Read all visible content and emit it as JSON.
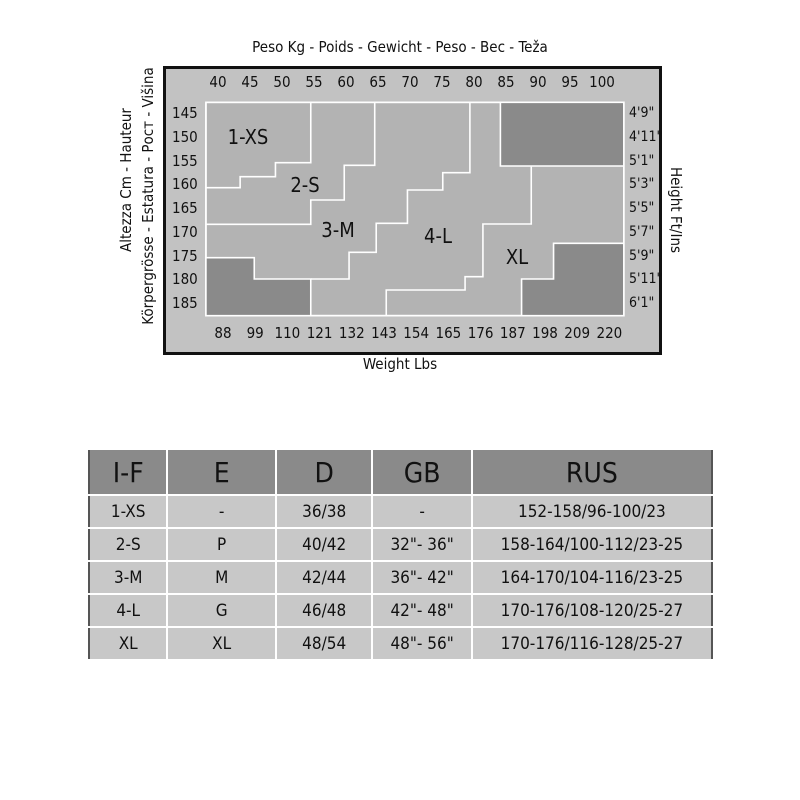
{
  "chart": {
    "title_top": "Peso Kg - Poids - Gewicht - Peso - Вес - Teža",
    "title_bottom": "Weight Lbs",
    "left_label_1": "Altezza Cm - Hauteur",
    "left_label_2": "Körpergrösse - Estatura - Рост - Višina",
    "right_label": "Height Ft/Ins",
    "kg_ticks": [
      "40",
      "45",
      "50",
      "55",
      "60",
      "65",
      "70",
      "75",
      "80",
      "85",
      "90",
      "95",
      "100"
    ],
    "lbs_ticks": [
      "88",
      "99",
      "110",
      "121",
      "132",
      "143",
      "154",
      "165",
      "176",
      "187",
      "198",
      "209",
      "220"
    ],
    "cm_ticks": [
      "145",
      "150",
      "155",
      "160",
      "165",
      "170",
      "175",
      "180",
      "185"
    ],
    "ft_ticks": [
      "4'9\"",
      "4'11\"",
      "5'1\"",
      "5'3\"",
      "5'5\"",
      "5'7\"",
      "5'9\"",
      "5'11\"",
      "6'1\""
    ],
    "zones": [
      "1-XS",
      "2-S",
      "3-M",
      "4-L",
      "XL"
    ],
    "colors": {
      "frame": "#c2c2c2",
      "zone": "#b3b3b3",
      "out_of_range": "#8a8a8a",
      "border": "#ffffff"
    }
  },
  "table": {
    "headers": [
      "I-F",
      "E",
      "D",
      "GB",
      "RUS"
    ],
    "rows": [
      [
        "1-XS",
        "-",
        "36/38",
        "-",
        "152-158/96-100/23"
      ],
      [
        "2-S",
        "P",
        "40/42",
        "32\"- 36\"",
        "158-164/100-112/23-25"
      ],
      [
        "3-M",
        "M",
        "42/44",
        "36\"- 42\"",
        "164-170/104-116/23-25"
      ],
      [
        "4-L",
        "G",
        "46/48",
        "42\"- 48\"",
        "170-176/108-120/25-27"
      ],
      [
        "XL",
        "XL",
        "48/54",
        "48\"- 56\"",
        "170-176/116-128/25-27"
      ]
    ],
    "colors": {
      "header": "#8a8a8a",
      "row": "#c8c8c8"
    }
  }
}
